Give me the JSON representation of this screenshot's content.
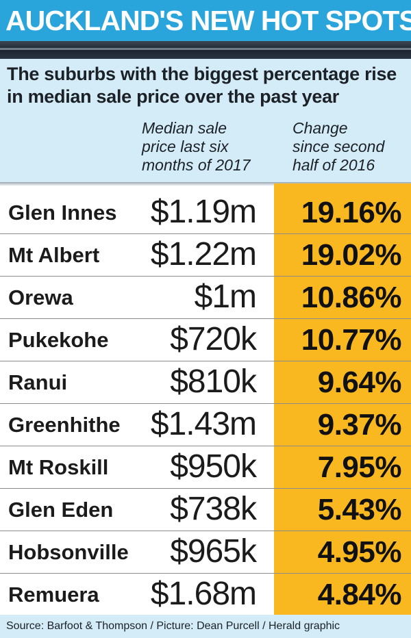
{
  "title": "AUCKLAND'S NEW HOT SPOTS",
  "subtitle": "The suburbs with the biggest percentage rise in median sale price over the past year",
  "columns": {
    "price": "Median sale\nprice last six\nmonths of 2017",
    "change": "Change\nsince second\nhalf of 2016"
  },
  "footer": {
    "credit": "Source: Barfoot & Thompson / Picture: Dean Purcell / Herald graphic"
  },
  "colors": {
    "header_blue": "#2aa5dc",
    "panel_light_blue": "#d4ecf8",
    "highlight_orange": "#f9b820"
  },
  "chart_data": {
    "type": "table",
    "title": "AUCKLAND'S NEW HOT SPOTS",
    "subtitle": "The suburbs with the biggest percentage rise in median sale price over the past year",
    "columns": [
      "",
      "Median sale price last six months of 2017",
      "Change since second half of 2016"
    ],
    "rows": [
      {
        "suburb": "Glen Innes",
        "price": "$1.19m",
        "change": "19.16%"
      },
      {
        "suburb": "Mt Albert",
        "price": "$1.22m",
        "change": "19.02%"
      },
      {
        "suburb": "Orewa",
        "price": "$1m",
        "change": "10.86%"
      },
      {
        "suburb": "Pukekohe",
        "price": "$720k",
        "change": "10.77%"
      },
      {
        "suburb": "Ranui",
        "price": "$810k",
        "change": "9.64%"
      },
      {
        "suburb": "Greenhithe",
        "price": "$1.43m",
        "change": "9.37%"
      },
      {
        "suburb": "Mt Roskill",
        "price": "$950k",
        "change": "7.95%"
      },
      {
        "suburb": "Glen Eden",
        "price": "$738k",
        "change": "5.43%"
      },
      {
        "suburb": "Hobsonville",
        "price": "$965k",
        "change": "4.95%"
      },
      {
        "suburb": "Remuera",
        "price": "$1.68m",
        "change": "4.84%"
      }
    ]
  }
}
